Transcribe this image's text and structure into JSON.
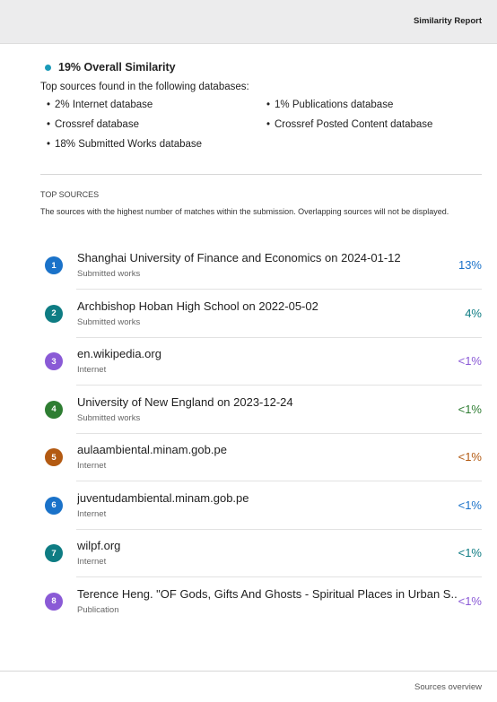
{
  "header": {
    "title": "Similarity Report"
  },
  "summary": {
    "overall": "19% Overall Similarity",
    "databases_intro": "Top sources found in the following databases:",
    "databases": [
      "2% Internet database",
      "1% Publications database",
      "Crossref database",
      "Crossref Posted Content database",
      "18% Submitted Works database"
    ]
  },
  "top_sources": {
    "heading": "TOP SOURCES",
    "description": "The sources with the highest number of matches within the submission. Overlapping sources will not be displayed.",
    "sources": [
      {
        "rank": "1",
        "title": "Shanghai University of Finance and Economics on 2024-01-12",
        "kind": "Submitted works",
        "percent": "13%",
        "color": "#1a72c9"
      },
      {
        "rank": "2",
        "title": "Archbishop Hoban High School on 2022-05-02",
        "kind": "Submitted works",
        "percent": "4%",
        "color": "#0e7c83"
      },
      {
        "rank": "3",
        "title": "en.wikipedia.org",
        "kind": "Internet",
        "percent": "<1%",
        "color": "#8a5ad6"
      },
      {
        "rank": "4",
        "title": "University of New England on 2023-12-24",
        "kind": "Submitted works",
        "percent": "<1%",
        "color": "#2e7d32"
      },
      {
        "rank": "5",
        "title": "aulaambiental.minam.gob.pe",
        "kind": "Internet",
        "percent": "<1%",
        "color": "#b35a12"
      },
      {
        "rank": "6",
        "title": "juventudambiental.minam.gob.pe",
        "kind": "Internet",
        "percent": "<1%",
        "color": "#1a72c9"
      },
      {
        "rank": "7",
        "title": "wilpf.org",
        "kind": "Internet",
        "percent": "<1%",
        "color": "#0e7c83"
      },
      {
        "rank": "8",
        "title": "Terence Heng. \"OF Gods, Gifts And Ghosts - Spiritual Places in Urban S...",
        "kind": "Publication",
        "percent": "<1%",
        "color": "#8a5ad6"
      }
    ]
  },
  "footer": {
    "label": "Sources overview"
  }
}
